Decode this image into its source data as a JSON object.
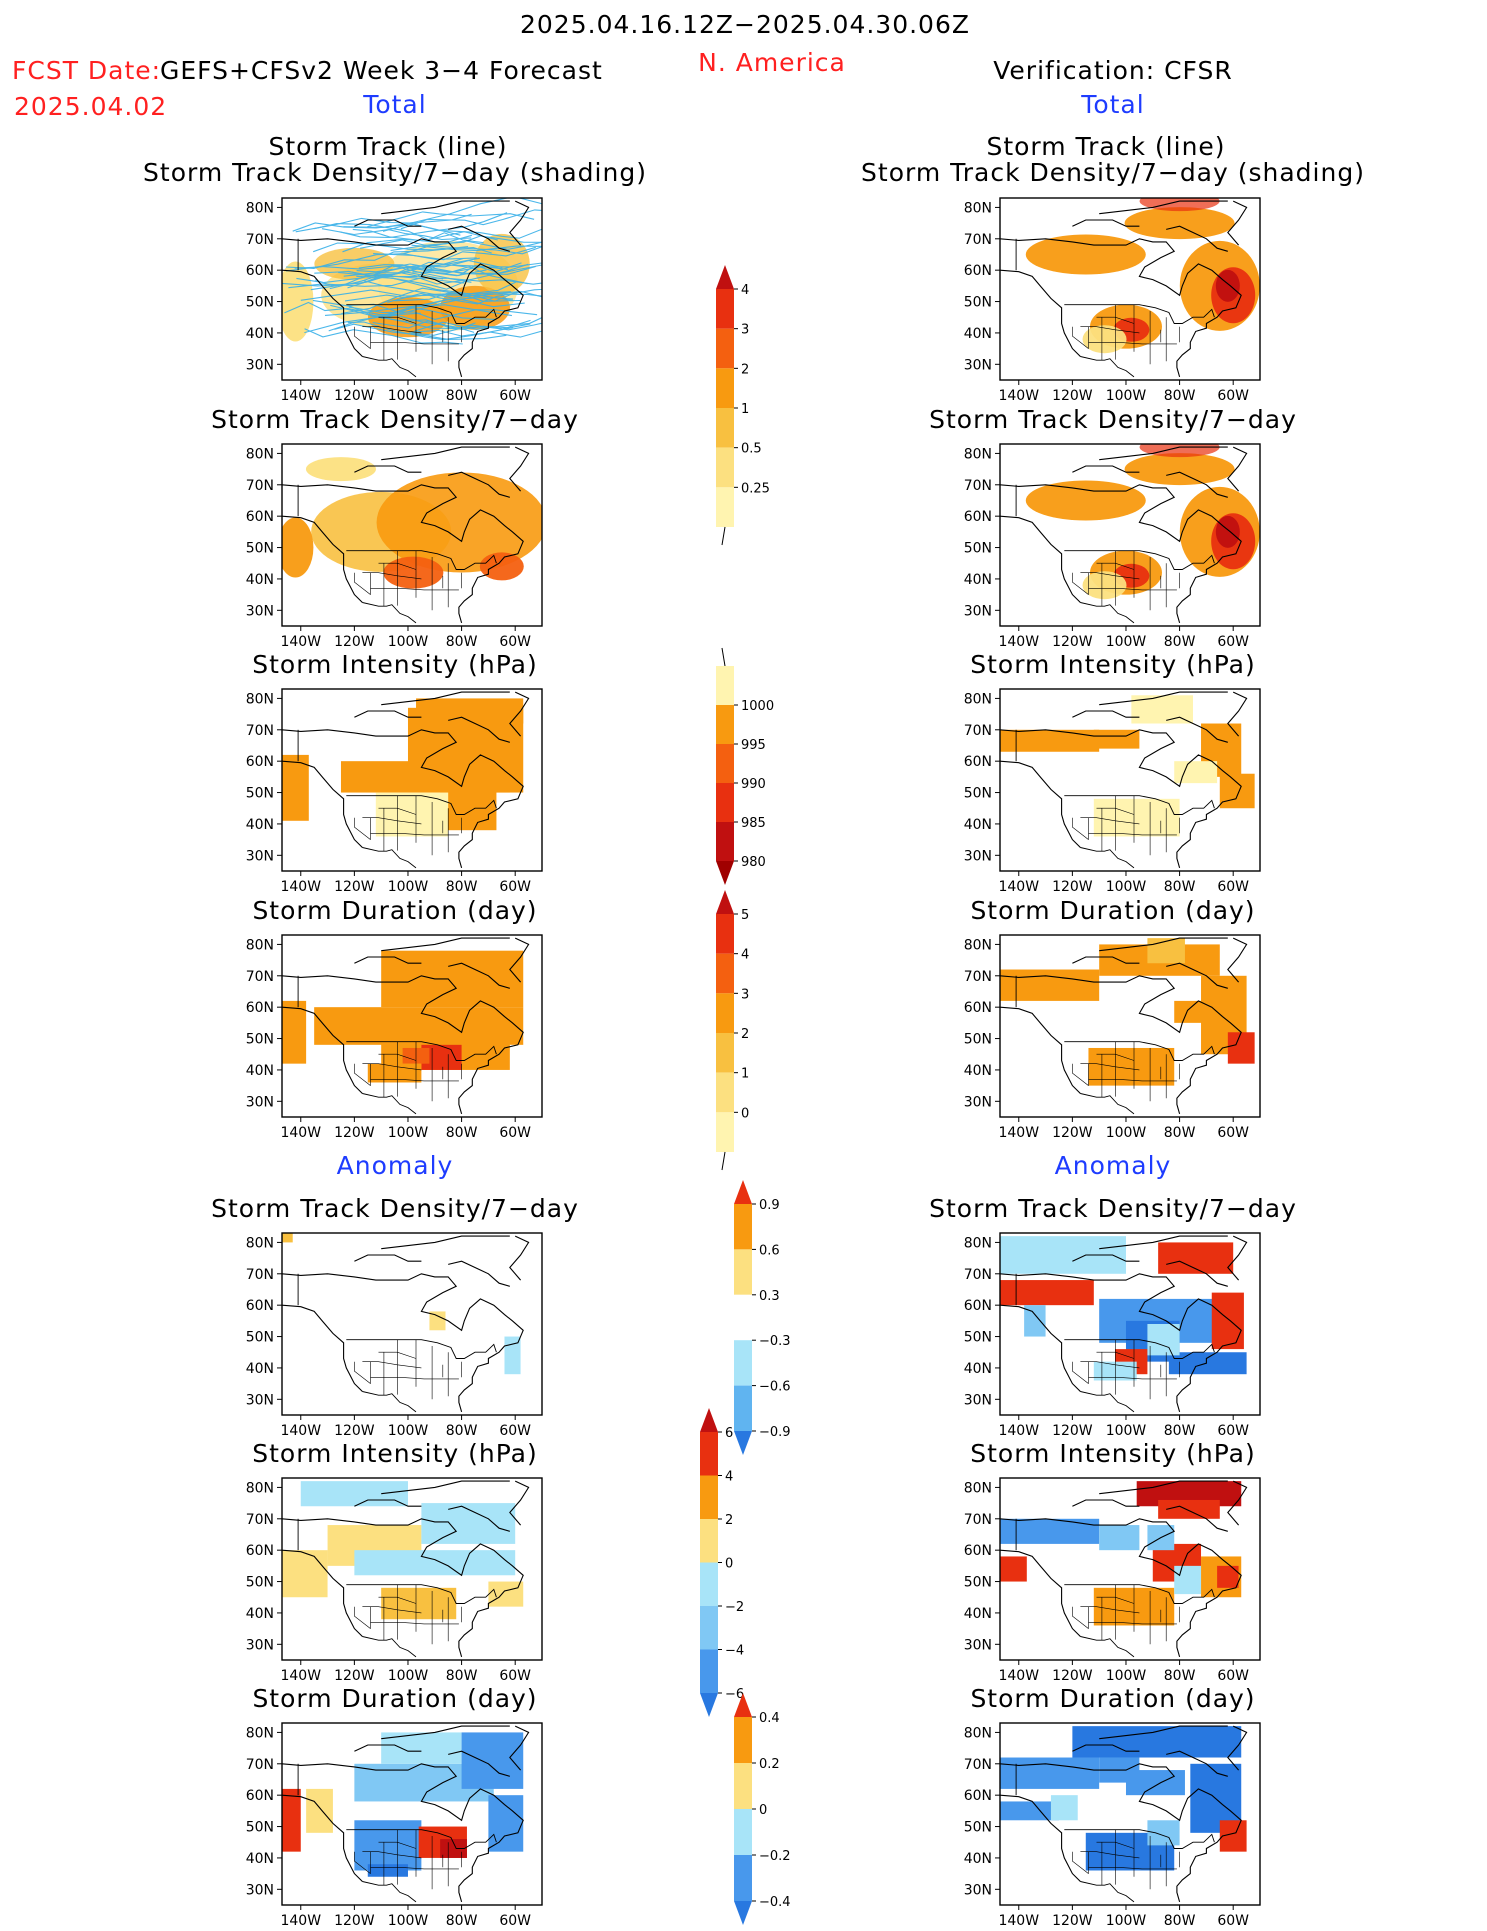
{
  "header": {
    "period": "2025.04.16.12Z−2025.04.30.06Z",
    "region": "N. America",
    "fcst_label": "FCST Date:",
    "fcst_model": "GEFS+CFSv2 Week 3−4 Forecast",
    "fcst_date": "2025.04.02",
    "verification": "Verification: CFSR",
    "total_left": "Total",
    "total_right": "Total",
    "anomaly_left": "Anomaly",
    "anomaly_right": "Anomaly"
  },
  "map_axes": {
    "lat_labels": [
      "80N",
      "70N",
      "60N",
      "50N",
      "40N",
      "30N"
    ],
    "lon_labels": [
      "140W",
      "120W",
      "100W",
      "80W",
      "60W"
    ]
  },
  "panels": [
    {
      "id": "fc-track-total",
      "title1": "Storm Track (line)",
      "title2": "Storm Track Density/7−day (shading)",
      "field": "track-lines"
    },
    {
      "id": "ob-track-total",
      "title1": "Storm Track (line)",
      "title2": "Storm Track Density/7−day (shading)",
      "field": "density-obs"
    },
    {
      "id": "fc-density-total",
      "title1": "Storm Track Density/7−day",
      "field": "density-fc"
    },
    {
      "id": "ob-density-total",
      "title1": "Storm Track Density/7−day",
      "field": "density-obs"
    },
    {
      "id": "fc-intensity-total",
      "title1": "Storm Intensity (hPa)",
      "field": "intensity-fc"
    },
    {
      "id": "ob-intensity-total",
      "title1": "Storm Intensity (hPa)",
      "field": "intensity-obs"
    },
    {
      "id": "fc-duration-total",
      "title1": "Storm Duration (day)",
      "field": "duration-fc"
    },
    {
      "id": "ob-duration-total",
      "title1": "Storm Duration (day)",
      "field": "duration-obs"
    },
    {
      "id": "fc-density-anom",
      "title1": "Storm Track Density/7−day",
      "field": "anom-density-fc"
    },
    {
      "id": "ob-density-anom",
      "title1": "Storm Track Density/7−day",
      "field": "anom-density-obs"
    },
    {
      "id": "fc-intensity-anom",
      "title1": "Storm Intensity (hPa)",
      "field": "anom-intensity-fc"
    },
    {
      "id": "ob-intensity-anom",
      "title1": "Storm Intensity (hPa)",
      "field": "anom-intensity-obs"
    },
    {
      "id": "fc-duration-anom",
      "title1": "Storm Duration (day)",
      "field": "anom-duration-fc"
    },
    {
      "id": "ob-duration-anom",
      "title1": "Storm Duration (day)",
      "field": "anom-duration-obs"
    }
  ],
  "colorbars": [
    {
      "id": "density-total",
      "labels": [
        "4",
        "3",
        "2",
        "1",
        "0.5",
        "0.25"
      ],
      "colors": [
        "#c01010",
        "#e83010",
        "#f46010",
        "#f89a10",
        "#f8c040",
        "#fce080",
        "#fff4b0"
      ],
      "below": "#ffffff"
    },
    {
      "id": "intensity-total",
      "labels": [
        "1000",
        "995",
        "990",
        "985",
        "980"
      ],
      "colors": [
        "#fff4b0",
        "#f89a10",
        "#f46010",
        "#e83010",
        "#c01010",
        "#a00000"
      ],
      "above": "#ffffff"
    },
    {
      "id": "duration-total",
      "labels": [
        "5",
        "4",
        "3",
        "2",
        "1",
        "0"
      ],
      "colors": [
        "#c01010",
        "#e83010",
        "#f46010",
        "#f89a10",
        "#f8c040",
        "#fce080",
        "#fff4b0"
      ],
      "below": "#ffffff"
    },
    {
      "id": "density-anom",
      "labels": [
        "0.9",
        "0.6",
        "0.3",
        "−0.3",
        "−0.6",
        "−0.9"
      ],
      "colors": [
        "#e83010",
        "#f89a10",
        "#fce080",
        "#ffffff",
        "#a8e4f8",
        "#60b4f0",
        "#2878e0"
      ]
    },
    {
      "id": "intensity-anom",
      "labels": [
        "6",
        "4",
        "2",
        "0",
        "−2",
        "−4",
        "−6"
      ],
      "colors": [
        "#c01010",
        "#e83010",
        "#f89a10",
        "#fce080",
        "#a8e4f8",
        "#80c8f4",
        "#4898ec",
        "#2878e0"
      ]
    },
    {
      "id": "duration-anom",
      "labels": [
        "0.4",
        "0.2",
        "0",
        "−0.2",
        "−0.4"
      ],
      "colors": [
        "#e83010",
        "#f89a10",
        "#fce080",
        "#a8e4f8",
        "#4898ec",
        "#2878e0"
      ]
    }
  ],
  "colors": {
    "title_red": "#ff2020",
    "title_blue": "#1e3cff",
    "track_line": "#38b0e8"
  }
}
